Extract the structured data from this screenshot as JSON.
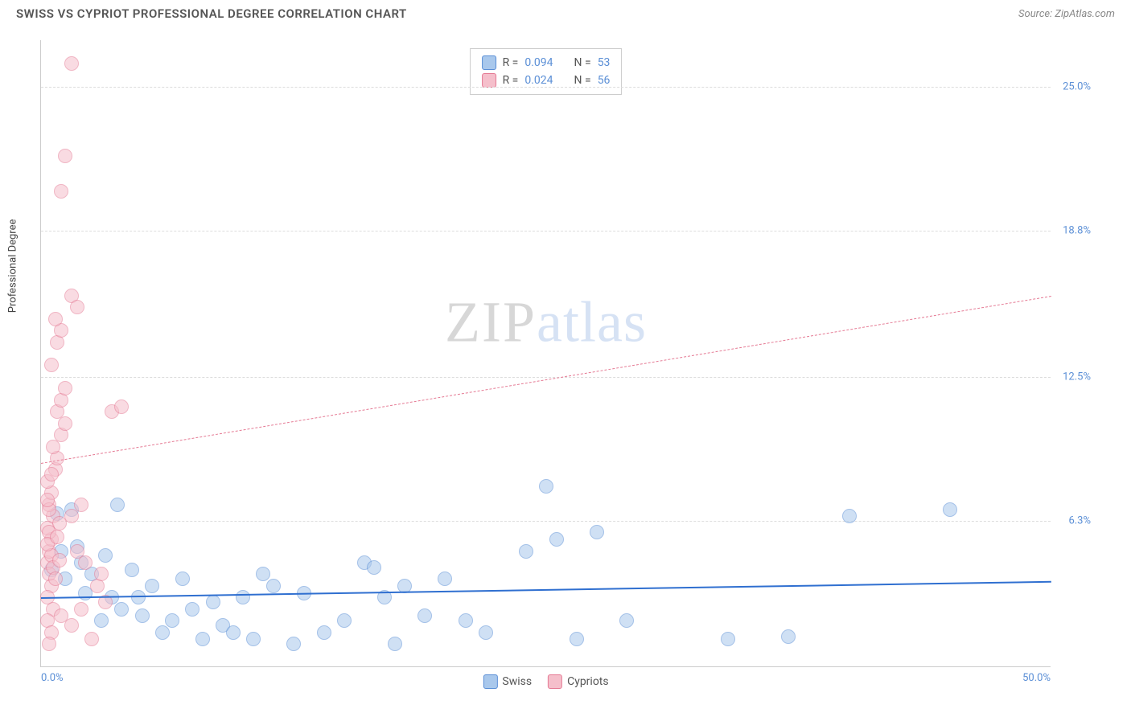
{
  "header": {
    "title": "SWISS VS CYPRIOT PROFESSIONAL DEGREE CORRELATION CHART",
    "source": "Source: ZipAtlas.com"
  },
  "watermark": {
    "zip": "ZIP",
    "atlas": "atlas"
  },
  "chart": {
    "type": "scatter",
    "background_color": "#ffffff",
    "grid_color": "#dddddd",
    "axis_color": "#cccccc",
    "tick_color": "#5b8fd6",
    "ylabel": "Professional Degree",
    "ylabel_fontsize": 13,
    "xlim": [
      0,
      50
    ],
    "ylim": [
      0,
      27
    ],
    "x_ticks": [
      {
        "value": 0,
        "label": "0.0%"
      },
      {
        "value": 50,
        "label": "50.0%"
      }
    ],
    "y_ticks": [
      {
        "value": 6.3,
        "label": "6.3%"
      },
      {
        "value": 12.5,
        "label": "12.5%"
      },
      {
        "value": 18.8,
        "label": "18.8%"
      },
      {
        "value": 25.0,
        "label": "25.0%"
      }
    ],
    "point_radius": 9,
    "point_opacity": 0.55,
    "series": [
      {
        "name": "Swiss",
        "color_fill": "#a9c8ec",
        "color_stroke": "#5b8fd6",
        "R": "0.094",
        "N": "53",
        "trend": {
          "x1": 0,
          "y1": 3.0,
          "x2": 50,
          "y2": 3.7,
          "color": "#2f6fd0",
          "width": 2.5,
          "dash": "none"
        },
        "points": [
          [
            0.5,
            4.2
          ],
          [
            0.8,
            6.6
          ],
          [
            1.0,
            5.0
          ],
          [
            1.2,
            3.8
          ],
          [
            1.5,
            6.8
          ],
          [
            1.8,
            5.2
          ],
          [
            2.0,
            4.5
          ],
          [
            2.2,
            3.2
          ],
          [
            2.5,
            4.0
          ],
          [
            3.0,
            2.0
          ],
          [
            3.2,
            4.8
          ],
          [
            3.5,
            3.0
          ],
          [
            3.8,
            7.0
          ],
          [
            4.0,
            2.5
          ],
          [
            4.5,
            4.2
          ],
          [
            4.8,
            3.0
          ],
          [
            5.0,
            2.2
          ],
          [
            5.5,
            3.5
          ],
          [
            6.0,
            1.5
          ],
          [
            6.5,
            2.0
          ],
          [
            7.0,
            3.8
          ],
          [
            7.5,
            2.5
          ],
          [
            8.0,
            1.2
          ],
          [
            8.5,
            2.8
          ],
          [
            9.0,
            1.8
          ],
          [
            9.5,
            1.5
          ],
          [
            10.0,
            3.0
          ],
          [
            10.5,
            1.2
          ],
          [
            11.0,
            4.0
          ],
          [
            11.5,
            3.5
          ],
          [
            12.5,
            1.0
          ],
          [
            13.0,
            3.2
          ],
          [
            14.0,
            1.5
          ],
          [
            15.0,
            2.0
          ],
          [
            16.0,
            4.5
          ],
          [
            16.5,
            4.3
          ],
          [
            17.0,
            3.0
          ],
          [
            17.5,
            1.0
          ],
          [
            18.0,
            3.5
          ],
          [
            19.0,
            2.2
          ],
          [
            20.0,
            3.8
          ],
          [
            21.0,
            2.0
          ],
          [
            22.0,
            1.5
          ],
          [
            24.0,
            5.0
          ],
          [
            25.0,
            7.8
          ],
          [
            25.5,
            5.5
          ],
          [
            26.5,
            1.2
          ],
          [
            27.5,
            5.8
          ],
          [
            29.0,
            2.0
          ],
          [
            34.0,
            1.2
          ],
          [
            37.0,
            1.3
          ],
          [
            40.0,
            6.5
          ],
          [
            45.0,
            6.8
          ]
        ]
      },
      {
        "name": "Cypriots",
        "color_fill": "#f5bfcb",
        "color_stroke": "#e57a94",
        "R": "0.024",
        "N": "56",
        "trend": {
          "x1": 0,
          "y1": 8.8,
          "x2": 50,
          "y2": 16.0,
          "color": "#e57a94",
          "width": 1.5,
          "dash": "6 5"
        },
        "points": [
          [
            0.3,
            4.5
          ],
          [
            0.4,
            5.0
          ],
          [
            0.5,
            5.5
          ],
          [
            0.3,
            6.0
          ],
          [
            0.6,
            6.5
          ],
          [
            0.4,
            7.0
          ],
          [
            0.5,
            7.5
          ],
          [
            0.3,
            8.0
          ],
          [
            0.7,
            8.5
          ],
          [
            0.4,
            4.0
          ],
          [
            0.8,
            9.0
          ],
          [
            0.5,
            3.5
          ],
          [
            0.3,
            3.0
          ],
          [
            0.6,
            2.5
          ],
          [
            0.4,
            5.8
          ],
          [
            0.9,
            6.2
          ],
          [
            0.5,
            4.8
          ],
          [
            0.3,
            5.3
          ],
          [
            1.0,
            10.0
          ],
          [
            1.2,
            10.5
          ],
          [
            0.8,
            11.0
          ],
          [
            1.0,
            11.5
          ],
          [
            1.2,
            12.0
          ],
          [
            0.5,
            13.0
          ],
          [
            0.8,
            14.0
          ],
          [
            1.0,
            14.5
          ],
          [
            0.7,
            15.0
          ],
          [
            1.5,
            16.0
          ],
          [
            1.8,
            15.5
          ],
          [
            1.0,
            20.5
          ],
          [
            1.2,
            22.0
          ],
          [
            1.5,
            26.0
          ],
          [
            0.3,
            2.0
          ],
          [
            0.5,
            1.5
          ],
          [
            0.4,
            1.0
          ],
          [
            1.0,
            2.2
          ],
          [
            1.5,
            1.8
          ],
          [
            2.0,
            2.5
          ],
          [
            2.5,
            1.2
          ],
          [
            2.2,
            4.5
          ],
          [
            1.8,
            5.0
          ],
          [
            1.5,
            6.5
          ],
          [
            2.0,
            7.0
          ],
          [
            2.8,
            3.5
          ],
          [
            3.0,
            4.0
          ],
          [
            3.5,
            11.0
          ],
          [
            4.0,
            11.2
          ],
          [
            3.2,
            2.8
          ],
          [
            0.6,
            4.3
          ],
          [
            0.7,
            3.8
          ],
          [
            0.4,
            6.8
          ],
          [
            0.8,
            5.6
          ],
          [
            0.3,
            7.2
          ],
          [
            0.9,
            4.6
          ],
          [
            0.5,
            8.3
          ],
          [
            0.6,
            9.5
          ]
        ]
      }
    ],
    "legend_top": {
      "R_label": "R =",
      "N_label": "N ="
    },
    "legend_bottom": [
      {
        "label": "Swiss",
        "fill": "#a9c8ec",
        "stroke": "#5b8fd6"
      },
      {
        "label": "Cypriots",
        "fill": "#f5bfcb",
        "stroke": "#e57a94"
      }
    ]
  }
}
